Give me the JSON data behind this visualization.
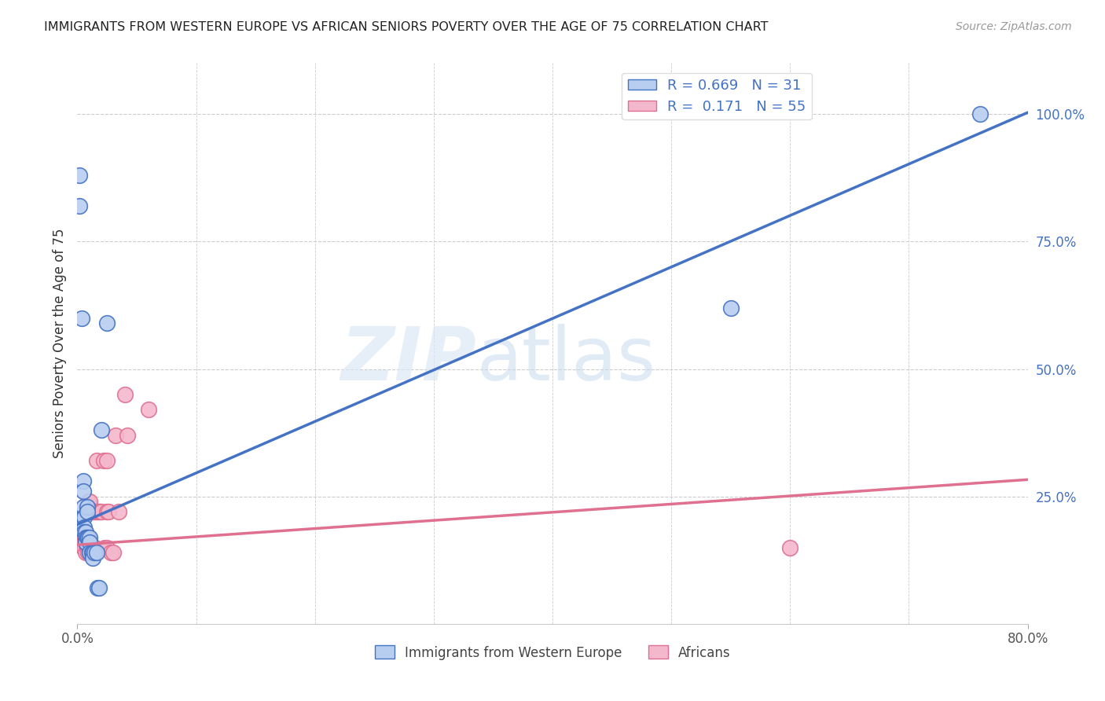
{
  "title": "IMMIGRANTS FROM WESTERN EUROPE VS AFRICAN SENIORS POVERTY OVER THE AGE OF 75 CORRELATION CHART",
  "source": "Source: ZipAtlas.com",
  "ylabel": "Seniors Poverty Over the Age of 75",
  "xlim": [
    0.0,
    0.8
  ],
  "ylim": [
    0.0,
    1.1
  ],
  "yticks_right": [
    0.0,
    0.25,
    0.5,
    0.75,
    1.0
  ],
  "yticklabels_right": [
    "",
    "25.0%",
    "50.0%",
    "75.0%",
    "100.0%"
  ],
  "blue_R": 0.669,
  "blue_N": 31,
  "pink_R": 0.171,
  "pink_N": 55,
  "watermark_zip": "ZIP",
  "watermark_atlas": "atlas",
  "blue_scatter": [
    [
      0.002,
      0.88
    ],
    [
      0.002,
      0.82
    ],
    [
      0.004,
      0.6
    ],
    [
      0.005,
      0.28
    ],
    [
      0.005,
      0.26
    ],
    [
      0.005,
      0.23
    ],
    [
      0.005,
      0.21
    ],
    [
      0.006,
      0.21
    ],
    [
      0.006,
      0.19
    ],
    [
      0.006,
      0.18
    ],
    [
      0.007,
      0.18
    ],
    [
      0.007,
      0.17
    ],
    [
      0.007,
      0.16
    ],
    [
      0.008,
      0.23
    ],
    [
      0.008,
      0.22
    ],
    [
      0.008,
      0.17
    ],
    [
      0.009,
      0.17
    ],
    [
      0.01,
      0.17
    ],
    [
      0.01,
      0.16
    ],
    [
      0.01,
      0.14
    ],
    [
      0.012,
      0.14
    ],
    [
      0.013,
      0.14
    ],
    [
      0.013,
      0.13
    ],
    [
      0.014,
      0.14
    ],
    [
      0.016,
      0.14
    ],
    [
      0.017,
      0.07
    ],
    [
      0.018,
      0.07
    ],
    [
      0.02,
      0.38
    ],
    [
      0.025,
      0.59
    ],
    [
      0.55,
      0.62
    ],
    [
      0.76,
      1.0
    ]
  ],
  "pink_scatter": [
    [
      0.001,
      0.17
    ],
    [
      0.002,
      0.17
    ],
    [
      0.003,
      0.17
    ],
    [
      0.003,
      0.16
    ],
    [
      0.004,
      0.17
    ],
    [
      0.004,
      0.16
    ],
    [
      0.005,
      0.17
    ],
    [
      0.005,
      0.16
    ],
    [
      0.005,
      0.15
    ],
    [
      0.006,
      0.17
    ],
    [
      0.006,
      0.16
    ],
    [
      0.006,
      0.15
    ],
    [
      0.007,
      0.17
    ],
    [
      0.007,
      0.16
    ],
    [
      0.007,
      0.14
    ],
    [
      0.008,
      0.17
    ],
    [
      0.008,
      0.15
    ],
    [
      0.009,
      0.24
    ],
    [
      0.009,
      0.22
    ],
    [
      0.009,
      0.15
    ],
    [
      0.009,
      0.14
    ],
    [
      0.01,
      0.24
    ],
    [
      0.01,
      0.22
    ],
    [
      0.01,
      0.15
    ],
    [
      0.011,
      0.22
    ],
    [
      0.011,
      0.15
    ],
    [
      0.011,
      0.14
    ],
    [
      0.012,
      0.22
    ],
    [
      0.012,
      0.15
    ],
    [
      0.013,
      0.22
    ],
    [
      0.013,
      0.15
    ],
    [
      0.014,
      0.22
    ],
    [
      0.014,
      0.15
    ],
    [
      0.015,
      0.22
    ],
    [
      0.015,
      0.15
    ],
    [
      0.015,
      0.14
    ],
    [
      0.016,
      0.32
    ],
    [
      0.017,
      0.22
    ],
    [
      0.018,
      0.22
    ],
    [
      0.019,
      0.22
    ],
    [
      0.02,
      0.22
    ],
    [
      0.022,
      0.32
    ],
    [
      0.023,
      0.15
    ],
    [
      0.025,
      0.32
    ],
    [
      0.025,
      0.22
    ],
    [
      0.025,
      0.15
    ],
    [
      0.026,
      0.22
    ],
    [
      0.028,
      0.14
    ],
    [
      0.03,
      0.14
    ],
    [
      0.032,
      0.37
    ],
    [
      0.035,
      0.22
    ],
    [
      0.04,
      0.45
    ],
    [
      0.042,
      0.37
    ],
    [
      0.06,
      0.42
    ],
    [
      0.6,
      0.15
    ]
  ],
  "blue_line_intercept": 0.195,
  "blue_line_slope": 1.01,
  "pink_line_intercept": 0.155,
  "pink_line_slope": 0.16,
  "blue_line_color": "#4472c4",
  "pink_line_color": "#e07090",
  "blue_scatter_color": "#b8cef0",
  "pink_scatter_color": "#f4b8cc",
  "grid_color": "#cccccc",
  "background_color": "#ffffff"
}
